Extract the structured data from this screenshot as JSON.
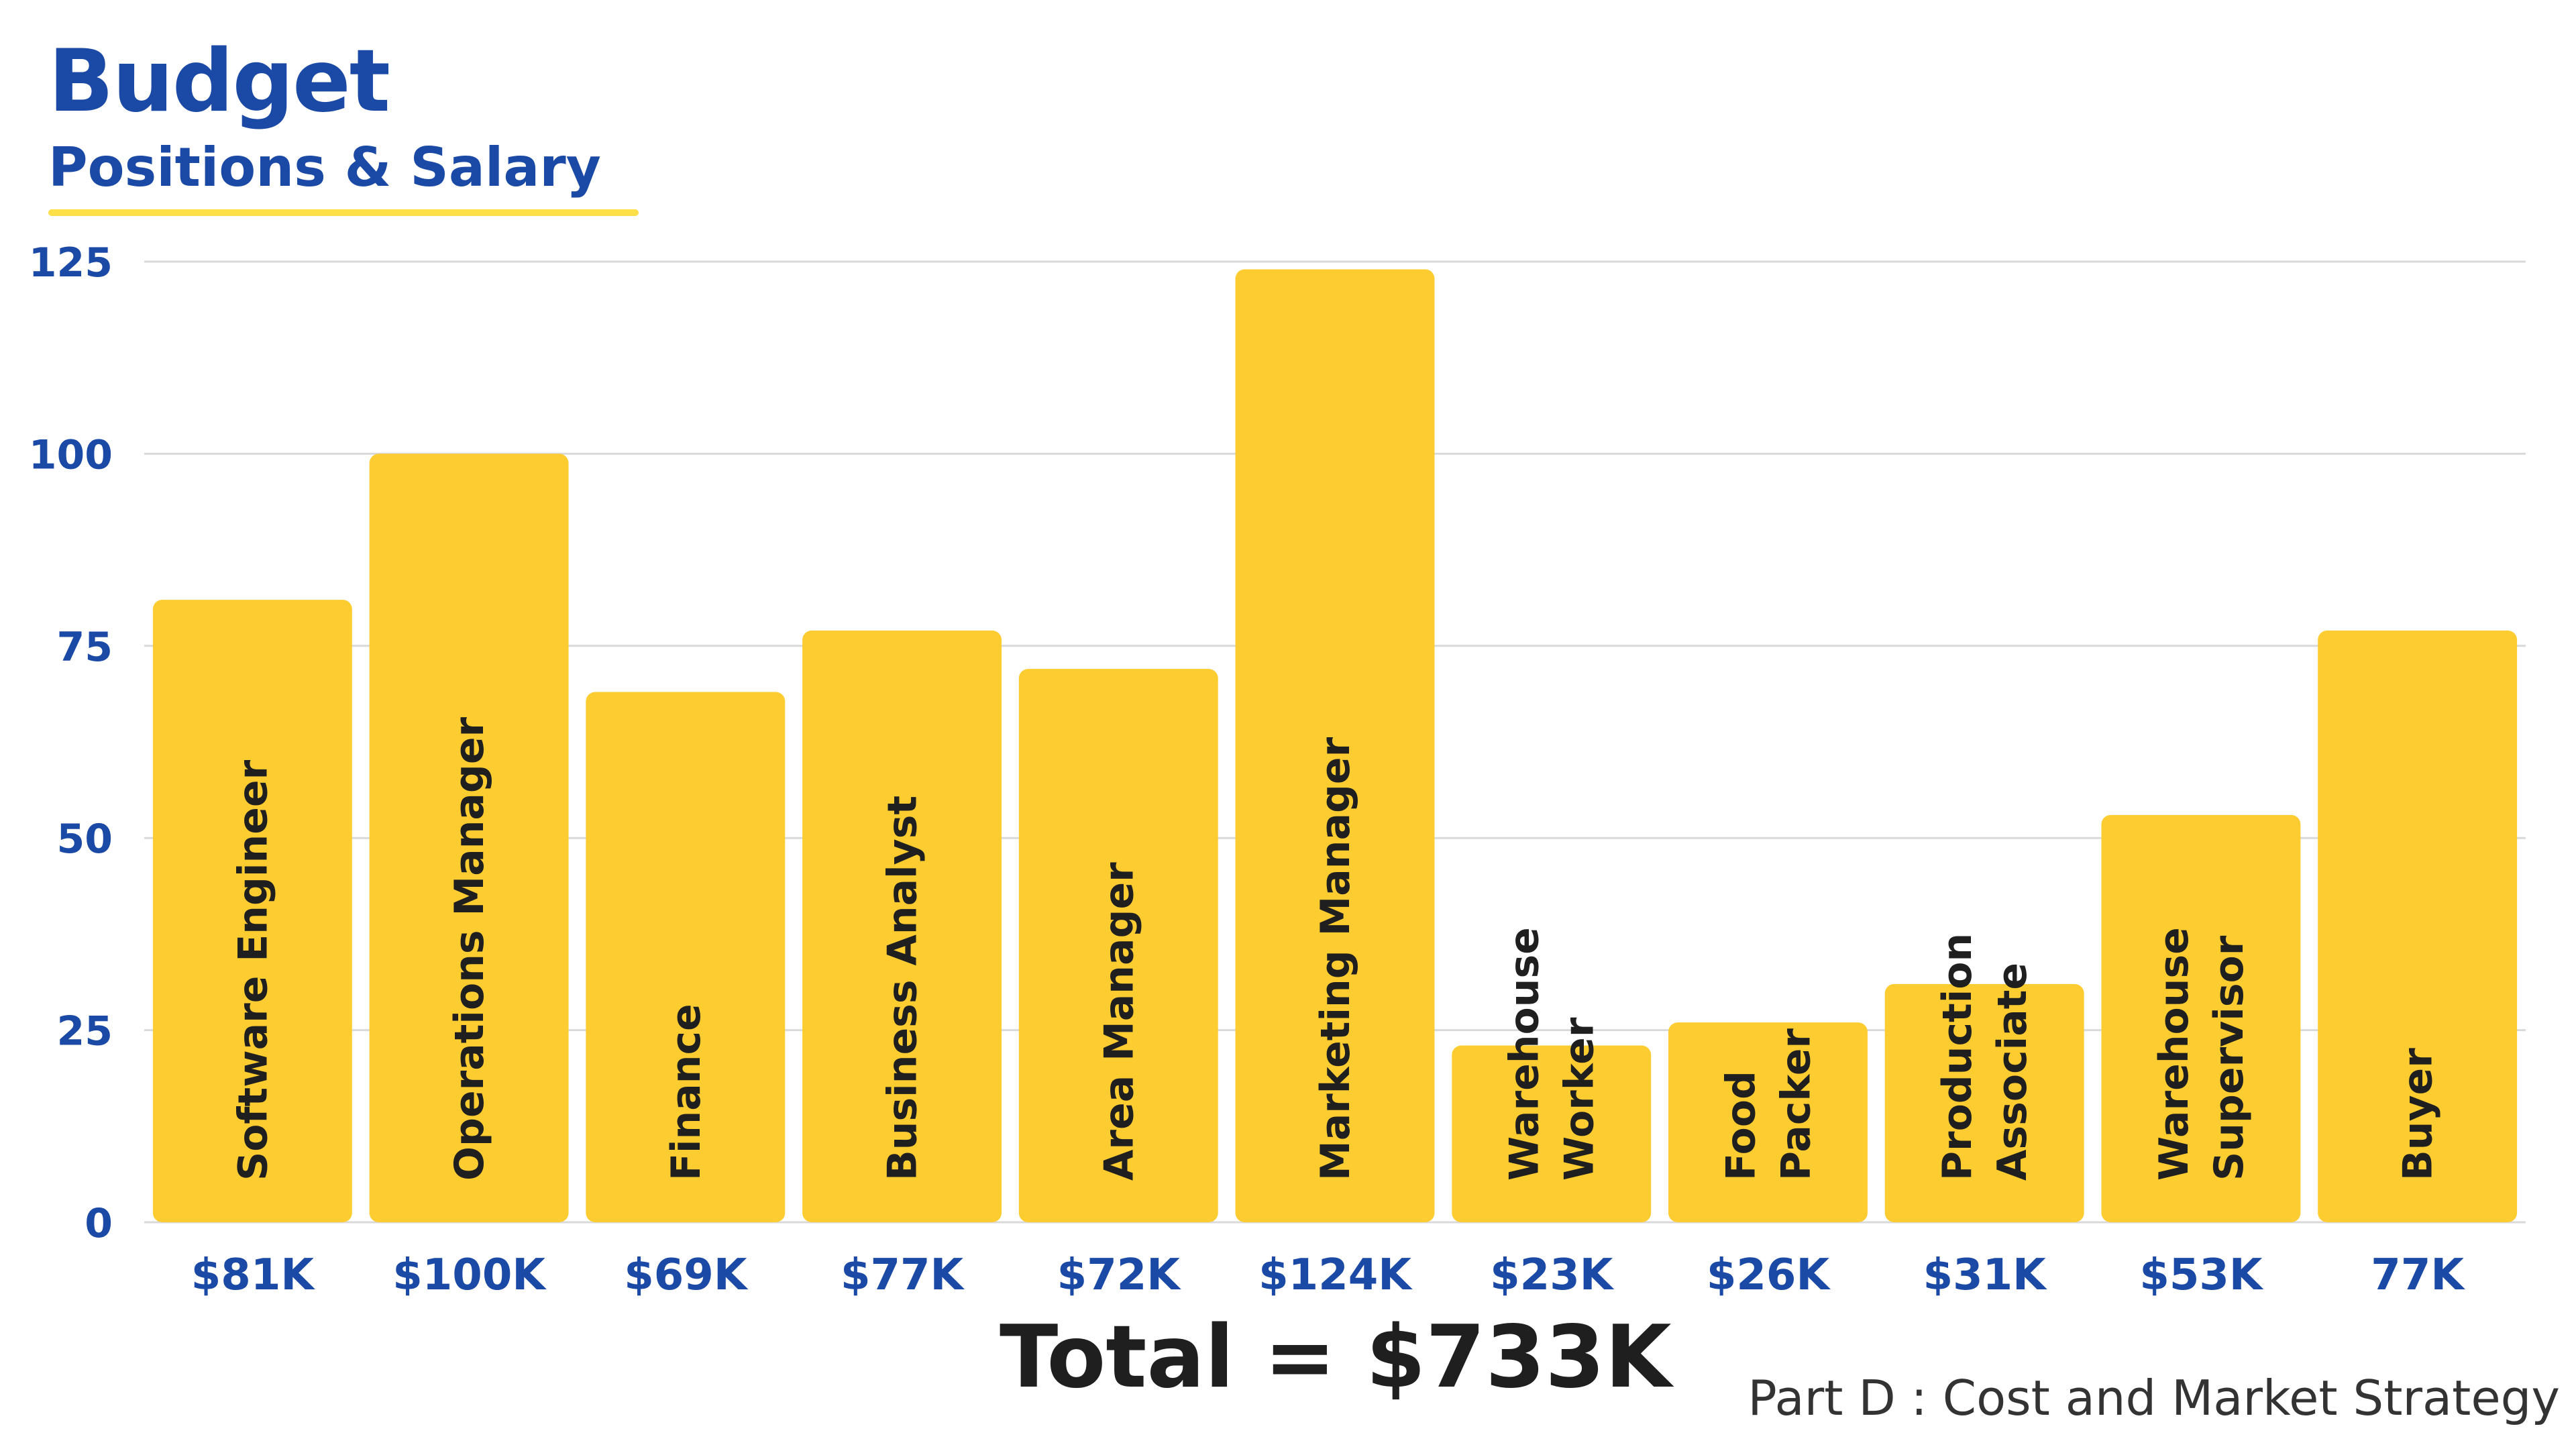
{
  "header": {
    "title": "Budget",
    "subtitle": "Positions & Salary"
  },
  "colors": {
    "accent": "#1b4aa6",
    "bar": "#fdcc30",
    "underline": "#fde047",
    "grid": "#d9d9d9",
    "bar_label": "#1f1f1f"
  },
  "chart_data": {
    "type": "bar",
    "title": "",
    "xlabel": "",
    "ylabel": "",
    "ylim": [
      0,
      125
    ],
    "yticks": [
      0,
      25,
      50,
      75,
      100,
      125
    ],
    "grid": true,
    "categories": [
      "Software Engineer",
      "Operations Manager",
      "Finance",
      "Business Analyst",
      "Area Manager",
      "Marketing Manager",
      "Warehouse Worker",
      "Food Packer",
      "Production Associate",
      "Warehouse Supervisor",
      "Buyer"
    ],
    "bar_label_lines": [
      [
        "Software Engineer"
      ],
      [
        "Operations Manager"
      ],
      [
        "Finance"
      ],
      [
        "Business Analyst"
      ],
      [
        "Area Manager"
      ],
      [
        "Marketing Manager"
      ],
      [
        "Warehouse",
        "Worker"
      ],
      [
        "Food",
        "Packer"
      ],
      [
        "Production",
        "Associate"
      ],
      [
        "Warehouse",
        "Supervisor"
      ],
      [
        "Buyer"
      ]
    ],
    "values": [
      81,
      100,
      69,
      77,
      72,
      124,
      23,
      26,
      31,
      53,
      77
    ],
    "tick_labels": [
      "$81K",
      "$100K",
      "$69K",
      "$77K",
      "$72K",
      "$124K",
      "$23K",
      "$26K",
      "$31K",
      "$53K",
      "77K"
    ]
  },
  "summary": {
    "total": "Total = $733K",
    "footer": "Part D : Cost and Market Strategy"
  }
}
